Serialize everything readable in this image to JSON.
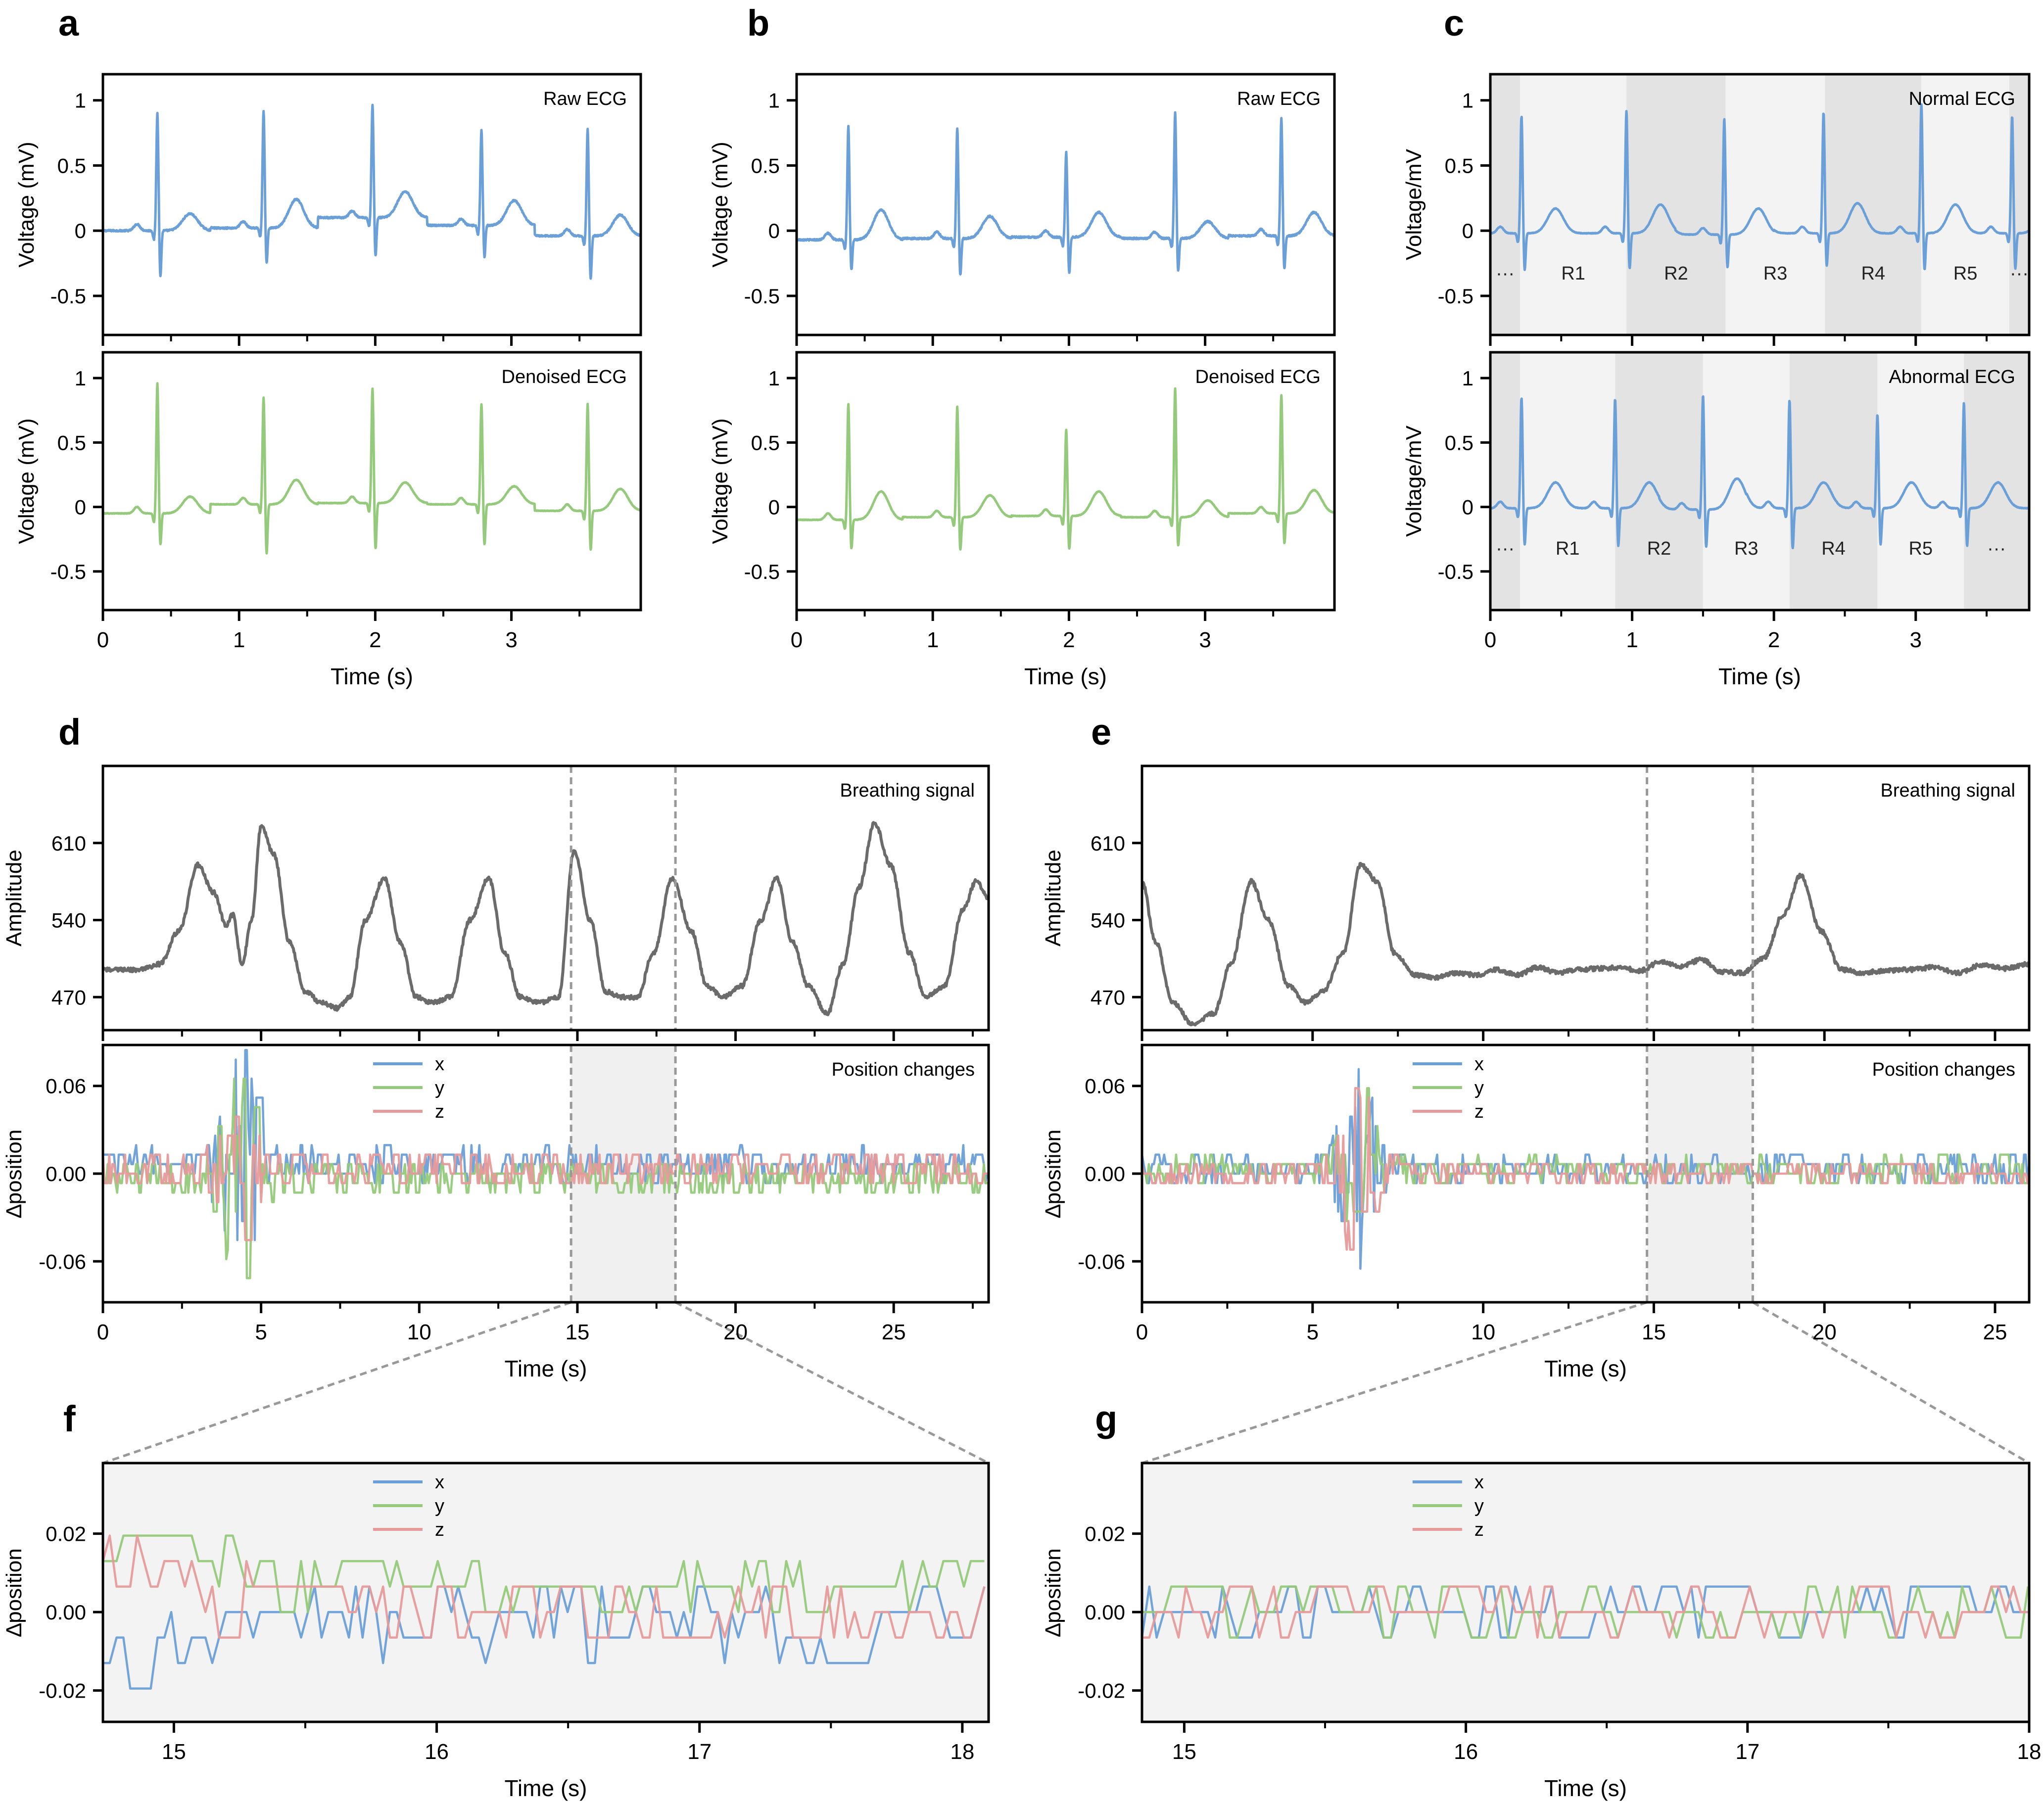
{
  "figure": {
    "panel_letters": [
      "a",
      "b",
      "c",
      "d",
      "e",
      "f",
      "g"
    ]
  },
  "colors": {
    "blue": "#6a9fd8",
    "green": "#95c97b",
    "red": "#e79a9a",
    "gray_line": "#6b6b6b",
    "shade_light": "#f3f3f3",
    "shade_dark": "#e3e3e3"
  },
  "chart_data": [
    {
      "id": "a-top",
      "panel": "a",
      "type": "line",
      "title": "Raw ECG",
      "xlabel": "",
      "ylabel": "Voltage (mV)",
      "xlim": [
        0,
        3.95
      ],
      "ylim": [
        -0.8,
        1.2
      ],
      "yticks": [
        1,
        0.5,
        0,
        -0.5
      ],
      "ytick_labels": [
        "1",
        "0.5",
        "0",
        "-0.5"
      ],
      "series": [
        {
          "name": "ECG",
          "color": "#6a9fd8",
          "beats": [
            0.4,
            1.18,
            1.98,
            2.78,
            3.56
          ],
          "r_amps": [
            0.91,
            0.92,
            0.97,
            0.77,
            0.78
          ],
          "s_amps": [
            -0.36,
            -0.26,
            -0.2,
            -0.21,
            -0.38
          ],
          "t_amps": [
            0.13,
            0.22,
            0.2,
            0.19,
            0.16
          ],
          "baseline": [
            0.0,
            0.02,
            0.1,
            0.04,
            -0.04
          ]
        }
      ]
    },
    {
      "id": "a-bottom",
      "panel": "a",
      "type": "line",
      "title": "Denoised ECG",
      "xlabel": "Time (s)",
      "ylabel": "Voltage (mV)",
      "xlim": [
        0,
        3.95
      ],
      "ylim": [
        -0.8,
        1.2
      ],
      "xticks": [
        0,
        1,
        2,
        3
      ],
      "xtick_labels": [
        "0",
        "1",
        "2",
        "3"
      ],
      "yticks": [
        1,
        0.5,
        0,
        -0.5
      ],
      "ytick_labels": [
        "1",
        "0.5",
        "0",
        "-0.5"
      ],
      "series": [
        {
          "name": "ECG",
          "color": "#95c97b",
          "beats": [
            0.4,
            1.18,
            1.98,
            2.78,
            3.56
          ],
          "r_amps": [
            0.96,
            0.85,
            0.92,
            0.8,
            0.8
          ],
          "s_amps": [
            -0.3,
            -0.37,
            -0.33,
            -0.3,
            -0.34
          ],
          "t_amps": [
            0.13,
            0.19,
            0.16,
            0.14,
            0.17
          ],
          "baseline": [
            -0.05,
            0.02,
            0.03,
            0.02,
            -0.03
          ]
        }
      ]
    },
    {
      "id": "b-top",
      "panel": "b",
      "type": "line",
      "title": "Raw ECG",
      "xlabel": "",
      "ylabel": "Voltage (mV)",
      "xlim": [
        0,
        3.95
      ],
      "ylim": [
        -0.8,
        1.2
      ],
      "yticks": [
        1,
        0.5,
        0,
        -0.5
      ],
      "ytick_labels": [
        "1",
        "0.5",
        "0",
        "-0.5"
      ],
      "series": [
        {
          "name": "ECG",
          "color": "#6a9fd8",
          "beats": [
            0.38,
            1.18,
            1.98,
            2.78,
            3.56
          ],
          "r_amps": [
            0.8,
            0.79,
            0.6,
            0.91,
            0.86
          ],
          "s_amps": [
            -0.31,
            -0.35,
            -0.33,
            -0.32,
            -0.3
          ],
          "t_amps": [
            0.23,
            0.17,
            0.19,
            0.13,
            0.18
          ],
          "baseline": [
            -0.07,
            -0.06,
            -0.05,
            -0.06,
            -0.04
          ]
        }
      ]
    },
    {
      "id": "b-bottom",
      "panel": "b",
      "type": "line",
      "title": "Denoised ECG",
      "xlabel": "Time (s)",
      "ylabel": "Voltage (mV)",
      "xlim": [
        0,
        3.95
      ],
      "ylim": [
        -0.8,
        1.2
      ],
      "xticks": [
        0,
        1,
        2,
        3
      ],
      "xtick_labels": [
        "0",
        "1",
        "2",
        "3"
      ],
      "yticks": [
        1,
        0.5,
        0,
        -0.5
      ],
      "ytick_labels": [
        "1",
        "0.5",
        "0",
        "-0.5"
      ],
      "series": [
        {
          "name": "ECG",
          "color": "#95c97b",
          "beats": [
            0.38,
            1.18,
            1.98,
            2.78,
            3.56
          ],
          "r_amps": [
            0.8,
            0.78,
            0.6,
            0.92,
            0.87
          ],
          "s_amps": [
            -0.33,
            -0.34,
            -0.33,
            -0.31,
            -0.29
          ],
          "t_amps": [
            0.22,
            0.17,
            0.19,
            0.13,
            0.18
          ],
          "baseline": [
            -0.1,
            -0.08,
            -0.07,
            -0.08,
            -0.05
          ]
        }
      ]
    },
    {
      "id": "c-top",
      "panel": "c",
      "type": "line",
      "title": "Normal ECG",
      "xlabel": "",
      "ylabel": "Voltage/mV",
      "xlim": [
        0,
        3.8
      ],
      "ylim": [
        -0.8,
        1.2
      ],
      "yticks": [
        1,
        0.5,
        0,
        -0.5
      ],
      "ytick_labels": [
        "1",
        "0.5",
        "0",
        "-0.5"
      ],
      "regions": [
        {
          "label": "···",
          "x0": 0,
          "x1": 0.21,
          "shade": "dark"
        },
        {
          "label": "R1",
          "x0": 0.21,
          "x1": 0.96,
          "shade": "light"
        },
        {
          "label": "R2",
          "x0": 0.96,
          "x1": 1.66,
          "shade": "dark"
        },
        {
          "label": "R3",
          "x0": 1.66,
          "x1": 2.36,
          "shade": "light"
        },
        {
          "label": "R4",
          "x0": 2.36,
          "x1": 3.04,
          "shade": "dark"
        },
        {
          "label": "R5",
          "x0": 3.04,
          "x1": 3.66,
          "shade": "light"
        },
        {
          "label": "···",
          "x0": 3.66,
          "x1": 3.8,
          "shade": "dark"
        }
      ],
      "series": [
        {
          "name": "ECG",
          "color": "#6a9fd8",
          "beats": [
            0.22,
            0.96,
            1.65,
            2.35,
            3.04,
            3.68
          ],
          "r_amps": [
            0.88,
            0.92,
            0.86,
            0.91,
            0.97,
            0.88
          ],
          "s_amps": [
            -0.31,
            -0.3,
            -0.29,
            -0.28,
            -0.31,
            -0.3
          ],
          "t_amps": [
            0.19,
            0.22,
            0.2,
            0.23,
            0.22,
            0.22
          ],
          "baseline": [
            -0.02,
            -0.02,
            -0.03,
            -0.02,
            -0.02,
            -0.02
          ]
        }
      ]
    },
    {
      "id": "c-bottom",
      "panel": "c",
      "type": "line",
      "title": "Abnormal ECG",
      "xlabel": "Time (s)",
      "ylabel": "Voltage/mV",
      "xlim": [
        0,
        3.8
      ],
      "ylim": [
        -0.8,
        1.2
      ],
      "xticks": [
        0,
        1,
        2,
        3
      ],
      "xtick_labels": [
        "0",
        "1",
        "2",
        "3"
      ],
      "yticks": [
        1,
        0.5,
        0,
        -0.5
      ],
      "ytick_labels": [
        "1",
        "0.5",
        "0",
        "-0.5"
      ],
      "regions": [
        {
          "label": "···",
          "x0": 0,
          "x1": 0.21,
          "shade": "dark"
        },
        {
          "label": "R1",
          "x0": 0.21,
          "x1": 0.88,
          "shade": "light"
        },
        {
          "label": "R2",
          "x0": 0.88,
          "x1": 1.5,
          "shade": "dark"
        },
        {
          "label": "R3",
          "x0": 1.5,
          "x1": 2.11,
          "shade": "light"
        },
        {
          "label": "R4",
          "x0": 2.11,
          "x1": 2.73,
          "shade": "dark"
        },
        {
          "label": "R5",
          "x0": 2.73,
          "x1": 3.34,
          "shade": "light"
        },
        {
          "label": "···",
          "x0": 3.34,
          "x1": 3.8,
          "shade": "dark"
        }
      ],
      "series": [
        {
          "name": "ECG",
          "color": "#6a9fd8",
          "beats": [
            0.22,
            0.88,
            1.5,
            2.11,
            2.73,
            3.34
          ],
          "r_amps": [
            0.85,
            0.84,
            0.87,
            0.83,
            0.72,
            0.81
          ],
          "s_amps": [
            -0.3,
            -0.31,
            -0.32,
            -0.33,
            -0.3,
            -0.31
          ],
          "t_amps": [
            0.2,
            0.2,
            0.24,
            0.2,
            0.2,
            0.2
          ],
          "baseline": [
            -0.01,
            -0.01,
            -0.02,
            -0.01,
            -0.01,
            -0.01
          ]
        }
      ]
    },
    {
      "id": "d-top",
      "panel": "d",
      "type": "line",
      "title": "Breathing signal",
      "xlabel": "",
      "ylabel": "Amplitude",
      "xlim": [
        0,
        28
      ],
      "ylim": [
        440,
        680
      ],
      "yticks": [
        610,
        540,
        470
      ],
      "ytick_labels": [
        "610",
        "540",
        "470"
      ],
      "guides_x": [
        14.8,
        18.1
      ],
      "series": [
        {
          "name": "Breathing",
          "color": "#6b6b6b",
          "x": [
            0,
            0.6,
            1.2,
            1.8,
            2.4,
            3.0,
            3.5,
            3.9,
            4.1,
            4.4,
            4.7,
            5.0,
            5.4,
            5.9,
            6.4,
            6.9,
            7.4,
            7.8,
            8.3,
            8.9,
            9.4,
            9.9,
            10.4,
            11.0,
            11.6,
            12.2,
            12.7,
            13.2,
            13.8,
            14.4,
            14.9,
            15.4,
            15.9,
            16.4,
            16.9,
            17.4,
            18.0,
            18.6,
            19.1,
            19.6,
            20.2,
            20.8,
            21.3,
            21.8,
            22.3,
            22.9,
            23.4,
            23.9,
            24.4,
            24.9,
            25.5,
            26.0,
            26.6,
            27.2,
            27.6,
            28.0
          ],
          "y": [
            495,
            495,
            495,
            500,
            530,
            590,
            565,
            535,
            545,
            500,
            540,
            625,
            600,
            520,
            475,
            465,
            460,
            470,
            540,
            578,
            520,
            470,
            465,
            470,
            540,
            578,
            510,
            470,
            465,
            470,
            603,
            540,
            475,
            470,
            470,
            510,
            578,
            530,
            480,
            470,
            480,
            540,
            578,
            520,
            480,
            455,
            500,
            570,
            628,
            590,
            510,
            470,
            480,
            550,
            575,
            560
          ]
        }
      ]
    },
    {
      "id": "d-bottom",
      "panel": "d",
      "type": "line",
      "title": "Position changes",
      "xlabel": "Time (s)",
      "ylabel": "∆position",
      "xlim": [
        0,
        28
      ],
      "ylim": [
        -0.088,
        0.088
      ],
      "xticks": [
        0,
        5,
        10,
        15,
        20,
        25
      ],
      "xtick_labels": [
        "0",
        "5",
        "10",
        "15",
        "20",
        "25"
      ],
      "yticks": [
        0.06,
        0.0,
        -0.06
      ],
      "ytick_labels": [
        "0.06",
        "0.00",
        "-0.06"
      ],
      "legend": [
        "x",
        "y",
        "z"
      ],
      "highlight": [
        14.8,
        18.1
      ],
      "series": [
        {
          "name": "x",
          "color": "#6a9fd8",
          "base": 0.006,
          "noise": 0.011,
          "burst_center": 4.3,
          "burst_amp": 0.08
        },
        {
          "name": "y",
          "color": "#95c97b",
          "base": -0.004,
          "noise": 0.012,
          "burst_center": 4.3,
          "burst_amp": 0.07
        },
        {
          "name": "z",
          "color": "#e79a9a",
          "base": 0.003,
          "noise": 0.012,
          "burst_center": 4.3,
          "burst_amp": 0.05
        }
      ]
    },
    {
      "id": "e-top",
      "panel": "e",
      "type": "line",
      "title": "Breathing signal",
      "xlabel": "",
      "ylabel": "Amplitude",
      "xlim": [
        0,
        26
      ],
      "ylim": [
        440,
        680
      ],
      "yticks": [
        610,
        540,
        470
      ],
      "ytick_labels": [
        "610",
        "540",
        "470"
      ],
      "guides_x": [
        14.8,
        17.9
      ],
      "series": [
        {
          "name": "Breathing",
          "color": "#6b6b6b",
          "x": [
            0,
            0.4,
            0.9,
            1.5,
            2.1,
            2.6,
            3.2,
            3.7,
            4.3,
            4.8,
            5.3,
            5.9,
            6.4,
            6.9,
            7.4,
            8.0,
            8.6,
            9.2,
            9.8,
            10.4,
            11.0,
            11.6,
            12.2,
            12.8,
            13.4,
            14.0,
            14.6,
            15.2,
            15.8,
            16.4,
            17.0,
            17.6,
            18.2,
            18.8,
            19.3,
            19.9,
            20.5,
            21.1,
            21.8,
            22.5,
            23.2,
            23.9,
            24.6,
            25.3,
            26.0
          ],
          "y": [
            575,
            520,
            465,
            445,
            455,
            500,
            575,
            540,
            480,
            465,
            475,
            510,
            590,
            575,
            510,
            490,
            488,
            492,
            490,
            495,
            490,
            497,
            492,
            495,
            496,
            497,
            494,
            502,
            498,
            504,
            493,
            492,
            505,
            545,
            580,
            530,
            495,
            492,
            494,
            495,
            497,
            492,
            499,
            496,
            500
          ]
        }
      ]
    },
    {
      "id": "e-bottom",
      "panel": "e",
      "type": "line",
      "title": "Position changes",
      "xlabel": "Time (s)",
      "ylabel": "∆position",
      "xlim": [
        0,
        26
      ],
      "ylim": [
        -0.088,
        0.088
      ],
      "xticks": [
        0,
        5,
        10,
        15,
        20,
        25
      ],
      "xtick_labels": [
        "0",
        "5",
        "10",
        "15",
        "20",
        "25"
      ],
      "yticks": [
        0.06,
        0.0,
        -0.06
      ],
      "ytick_labels": [
        "0.06",
        "0.00",
        "-0.06"
      ],
      "legend": [
        "x",
        "y",
        "z"
      ],
      "highlight": [
        14.8,
        17.9
      ],
      "series": [
        {
          "name": "x",
          "color": "#6a9fd8",
          "base": 0.003,
          "noise": 0.009,
          "burst_center": 6.3,
          "burst_amp": 0.065
        },
        {
          "name": "y",
          "color": "#95c97b",
          "base": 0.002,
          "noise": 0.009,
          "burst_center": 6.3,
          "burst_amp": 0.06
        },
        {
          "name": "z",
          "color": "#e79a9a",
          "base": 0.0,
          "noise": 0.008,
          "burst_center": 6.3,
          "burst_amp": 0.06
        }
      ]
    },
    {
      "id": "f",
      "panel": "f",
      "type": "line",
      "title": "",
      "xlabel": "Time (s)",
      "ylabel": "∆position",
      "xlim": [
        14.73,
        18.1
      ],
      "ylim": [
        -0.028,
        0.038
      ],
      "xticks": [
        15,
        16,
        17,
        18
      ],
      "xtick_labels": [
        "15",
        "16",
        "17",
        "18"
      ],
      "yticks": [
        0.02,
        0.0,
        -0.02
      ],
      "ytick_labels": [
        "0.02",
        "0.00",
        "-0.02"
      ],
      "legend": [
        "x",
        "y",
        "z"
      ],
      "series": [
        {
          "name": "x",
          "color": "#6a9fd8",
          "base": -0.002,
          "noise": 0.009,
          "start": -0.016
        },
        {
          "name": "y",
          "color": "#95c97b",
          "base": 0.006,
          "noise": 0.007,
          "start": 0.022
        },
        {
          "name": "z",
          "color": "#e79a9a",
          "base": 0.0,
          "noise": 0.009,
          "start": 0.016
        }
      ]
    },
    {
      "id": "g",
      "panel": "g",
      "type": "line",
      "title": "",
      "xlabel": "Time (s)",
      "ylabel": "∆position",
      "xlim": [
        14.85,
        18.0
      ],
      "ylim": [
        -0.028,
        0.038
      ],
      "xticks": [
        15,
        16,
        17,
        18
      ],
      "xtick_labels": [
        "15",
        "16",
        "17",
        "18"
      ],
      "yticks": [
        0.02,
        0.0,
        -0.02
      ],
      "ytick_labels": [
        "0.02",
        "0.00",
        "-0.02"
      ],
      "legend": [
        "x",
        "y",
        "z"
      ],
      "series": [
        {
          "name": "x",
          "color": "#6a9fd8",
          "base": 0.001,
          "noise": 0.006,
          "start": 0.0
        },
        {
          "name": "y",
          "color": "#95c97b",
          "base": 0.0,
          "noise": 0.006,
          "start": 0.0
        },
        {
          "name": "z",
          "color": "#e79a9a",
          "base": 0.0,
          "noise": 0.007,
          "start": 0.0
        }
      ]
    }
  ]
}
